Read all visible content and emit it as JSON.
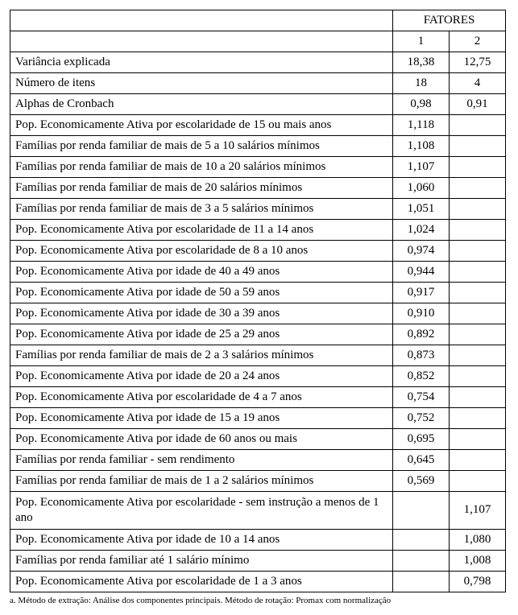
{
  "header": {
    "fatores": "FATORES",
    "col1": "1",
    "col2": "2"
  },
  "rows": [
    {
      "label": "Variância explicada",
      "f1": "18,38",
      "f2": "12,75"
    },
    {
      "label": "Número de itens",
      "f1": "18",
      "f2": "4"
    },
    {
      "label": "Alphas de Cronbach",
      "f1": "0,98",
      "f2": "0,91"
    },
    {
      "label": "Pop. Economicamente Ativa por escolaridade de 15 ou mais anos",
      "f1": "1,118",
      "f2": ""
    },
    {
      "label": "Famílias por renda familiar de mais de 5 a 10 salários mínimos",
      "f1": "1,108",
      "f2": ""
    },
    {
      "label": "Famílias por renda familiar de mais de 10 a 20 salários mínimos",
      "f1": "1,107",
      "f2": ""
    },
    {
      "label": "Famílias por renda familiar de mais de 20 salários mínimos",
      "f1": "1,060",
      "f2": ""
    },
    {
      "label": "Famílias por renda familiar de mais de 3 a 5 salários mínimos",
      "f1": "1,051",
      "f2": ""
    },
    {
      "label": "Pop. Economicamente Ativa por escolaridade de 11 a 14 anos",
      "f1": "1,024",
      "f2": ""
    },
    {
      "label": "Pop. Economicamente Ativa por escolaridade de 8 a 10 anos",
      "f1": "0,974",
      "f2": ""
    },
    {
      "label": "Pop. Economicamente Ativa por idade de 40 a 49 anos",
      "f1": "0,944",
      "f2": ""
    },
    {
      "label": "Pop. Economicamente Ativa por idade de 50 a 59 anos",
      "f1": "0,917",
      "f2": ""
    },
    {
      "label": "Pop. Economicamente Ativa por idade de 30 a 39 anos",
      "f1": "0,910",
      "f2": ""
    },
    {
      "label": "Pop. Economicamente Ativa por idade de 25 a 29 anos",
      "f1": "0,892",
      "f2": ""
    },
    {
      "label": "Famílias por renda familiar de mais de 2 a 3 salários mínimos",
      "f1": "0,873",
      "f2": ""
    },
    {
      "label": "Pop. Economicamente Ativa por idade de 20 a 24 anos",
      "f1": "0,852",
      "f2": ""
    },
    {
      "label": "Pop. Economicamente Ativa por escolaridade de 4 a 7 anos",
      "f1": "0,754",
      "f2": ""
    },
    {
      "label": "Pop. Economicamente Ativa por idade de 15 a 19 anos",
      "f1": "0,752",
      "f2": ""
    },
    {
      "label": "Pop. Economicamente Ativa por idade de 60 anos ou mais",
      "f1": "0,695",
      "f2": ""
    },
    {
      "label": "Famílias por renda familiar - sem rendimento",
      "f1": "0,645",
      "f2": ""
    },
    {
      "label": "Famílias por renda familiar de mais de 1 a 2 salários mínimos",
      "f1": "0,569",
      "f2": ""
    },
    {
      "label": "Pop. Economicamente Ativa por escolaridade - sem instrução a menos de 1 ano",
      "f1": "",
      "f2": "1,107",
      "wrap": true
    },
    {
      "label": "Pop. Economicamente Ativa por idade de 10 a 14 anos",
      "f1": "",
      "f2": "1,080"
    },
    {
      "label": "Famílias por renda familiar até 1 salário mínimo",
      "f1": "",
      "f2": "1,008"
    },
    {
      "label": "Pop. Economicamente Ativa por escolaridade de 1 a 3 anos",
      "f1": "",
      "f2": "0,798"
    }
  ],
  "footnote": "a. Método de extração: Análise dos componentes principais. Método de rotação: Promax com normalização"
}
